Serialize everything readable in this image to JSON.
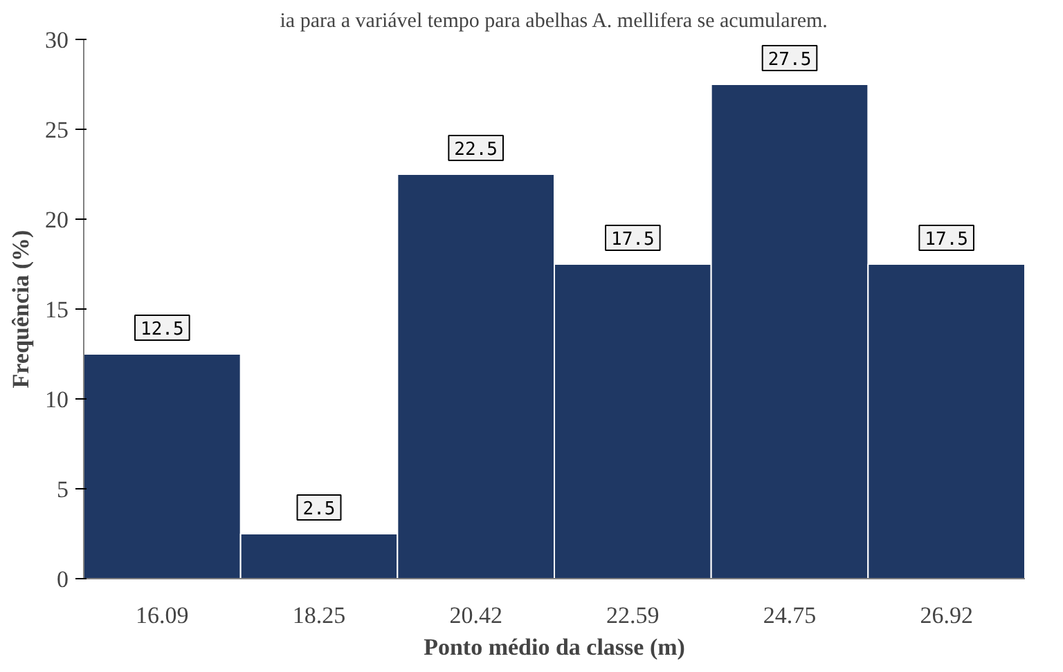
{
  "chart_data": {
    "type": "bar",
    "title": "ia para a variável tempo para abelhas A. mellifera se acumularem.",
    "categories": [
      "16.09",
      "18.25",
      "20.42",
      "22.59",
      "24.75",
      "26.92"
    ],
    "values": [
      12.5,
      2.5,
      22.5,
      17.5,
      27.5,
      17.5
    ],
    "color": "#1f3864",
    "ylim": [
      0,
      30
    ],
    "yticks": [
      0,
      5,
      10,
      15,
      20,
      25,
      30
    ],
    "grid": false,
    "data_labels": true,
    "xlabel": "Ponto médio da classe (m)",
    "ylabel": "Frequência (%)"
  }
}
